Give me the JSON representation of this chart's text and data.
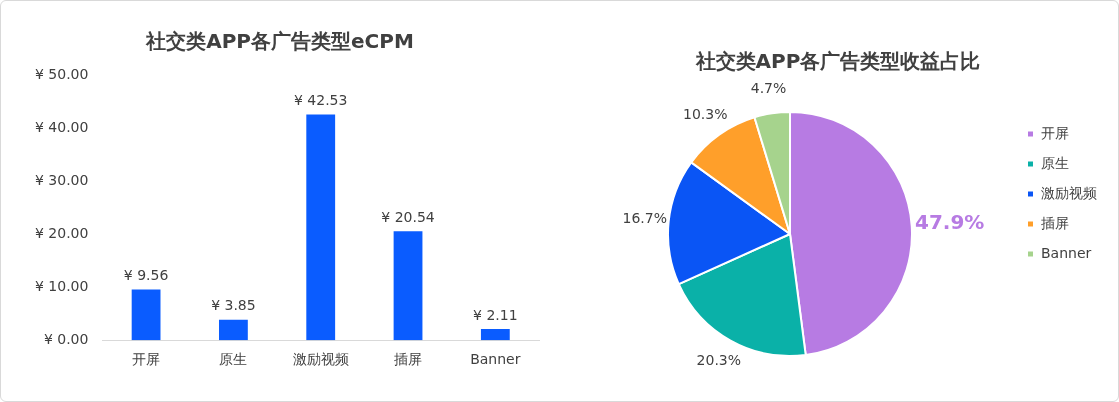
{
  "chart_data": [
    {
      "type": "bar",
      "title": "社交类APP各广告类型eCPM",
      "categories": [
        "开屏",
        "原生",
        "激励视频",
        "插屏",
        "Banner"
      ],
      "values": [
        9.56,
        3.85,
        42.53,
        20.54,
        2.11
      ],
      "color": "#0a5cff",
      "value_labels": [
        "¥ 9.56",
        "¥ 3.85",
        "¥ 42.53",
        "¥ 20.54",
        "¥ 2.11"
      ],
      "ylim": [
        0,
        50
      ],
      "yticks": [
        {
          "value": 0,
          "label": "¥ 0.00"
        },
        {
          "value": 10,
          "label": "¥ 10.00"
        },
        {
          "value": 20,
          "label": "¥ 20.00"
        },
        {
          "value": 30,
          "label": "¥ 30.00"
        },
        {
          "value": 40,
          "label": "¥ 40.00"
        },
        {
          "value": 50,
          "label": "¥ 50.00"
        }
      ],
      "grid": false,
      "legend": false
    },
    {
      "type": "pie",
      "title": "社交类APP各广告类型收益占比",
      "categories": [
        "开屏",
        "原生",
        "激励视频",
        "插屏",
        "Banner"
      ],
      "values": [
        47.9,
        20.3,
        16.7,
        10.3,
        4.7
      ],
      "colors": [
        "#b77be3",
        "#0ab1a8",
        "#0a55f5",
        "#ff9f2a",
        "#a6d38d"
      ],
      "value_labels": [
        "47.9%",
        "20.3%",
        "16.7%",
        "10.3%",
        "4.7%"
      ],
      "legend": "right"
    }
  ]
}
